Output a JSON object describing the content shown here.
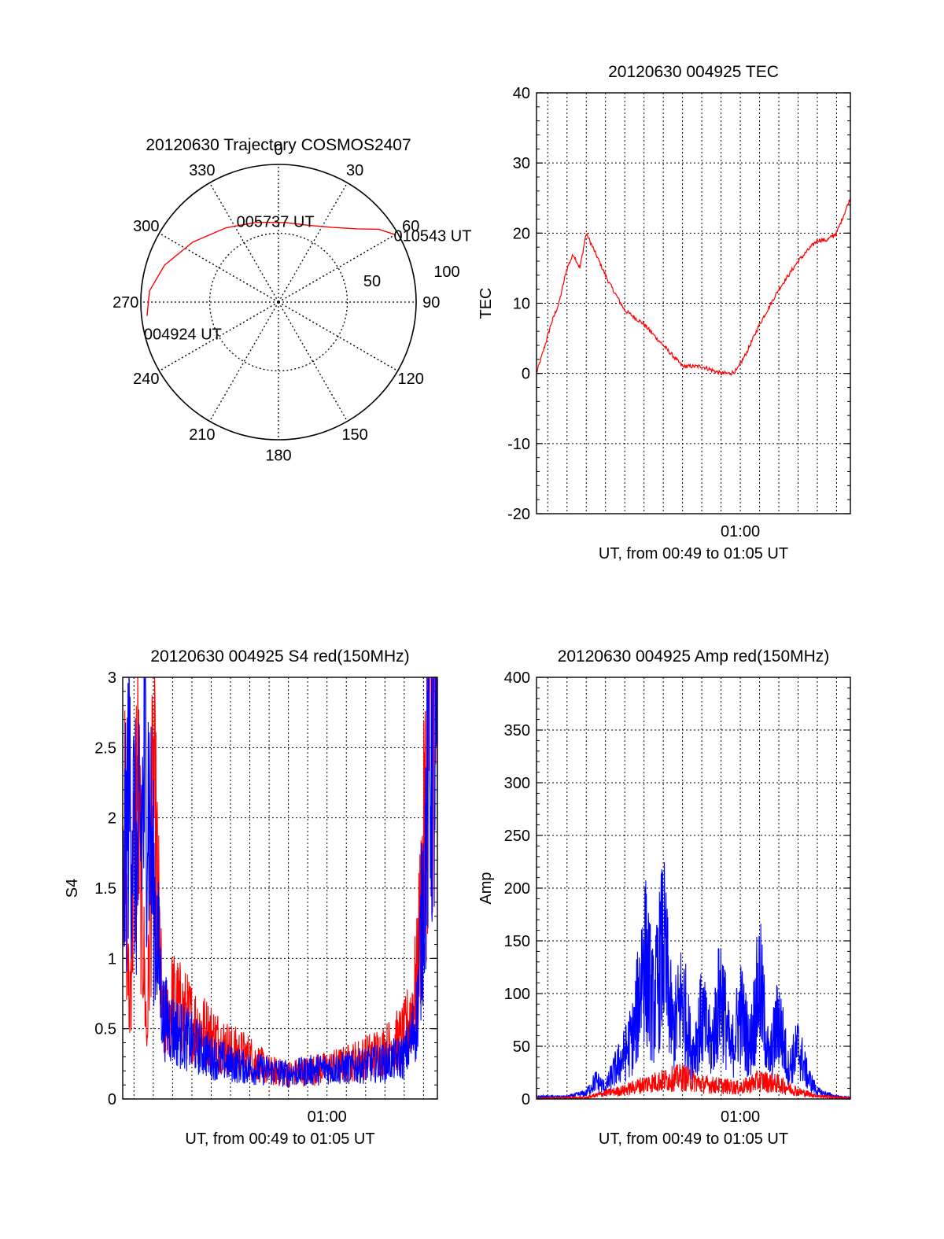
{
  "figure": {
    "background": "#ffffff"
  },
  "chart_data": [
    {
      "type": "polar",
      "title": "20120630 Trajectory COSMOS2407",
      "azimuth_labels": [
        "0",
        "30",
        "60",
        "90",
        "120",
        "150",
        "180",
        "210",
        "240",
        "270",
        "300",
        "330"
      ],
      "ring_labels": [
        "50",
        "100"
      ],
      "grid": true,
      "track": {
        "color": "#ff0000",
        "azimuth_deg": [
          264,
          275,
          288,
          305,
          325,
          345,
          5,
          22,
          36,
          47,
          54,
          60
        ],
        "zenith_deg": [
          96,
          94,
          87,
          76,
          66,
          60,
          58,
          60,
          67,
          78,
          90,
          98
        ]
      },
      "annotations": [
        {
          "text": "010543 UT",
          "azimuth_deg": 60,
          "zenith_deg": 98
        },
        {
          "text": "005737 UT",
          "azimuth_deg": 350,
          "zenith_deg": 59
        },
        {
          "text": "004924 UT",
          "azimuth_deg": 264,
          "zenith_deg": 96
        }
      ]
    },
    {
      "type": "line",
      "title": "20120630 004925 TEC",
      "xlabel": "UT, from 00:49 to 01:05 UT",
      "ylabel": "TEC",
      "xlim": [
        "00:49:25",
        "01:05:43"
      ],
      "ylim": [
        -20,
        40
      ],
      "yticks": [
        "-20",
        "-10",
        "0",
        "10",
        "20",
        "30",
        "40"
      ],
      "xticks": [
        {
          "label": "01:00",
          "time": "01:00:00"
        }
      ],
      "grid": true,
      "series": [
        {
          "color": "#ff0000",
          "x": [
            "00:49:25",
            "00:49:45",
            "00:50:10",
            "00:50:35",
            "00:51:00",
            "00:51:20",
            "00:51:40",
            "00:52:00",
            "00:52:10",
            "00:52:30",
            "00:53:10",
            "00:54:00",
            "00:55:00",
            "00:56:00",
            "00:57:00",
            "00:58:00",
            "00:58:30",
            "00:59:00",
            "00:59:30",
            "00:59:50",
            "01:00:20",
            "01:01:00",
            "01:02:00",
            "01:03:00",
            "01:04:00",
            "01:04:30",
            "01:05:00",
            "01:05:43"
          ],
          "y": [
            0,
            3,
            7,
            10,
            15,
            17,
            15,
            20,
            19,
            17,
            13,
            9,
            7,
            4,
            1,
            1,
            0.5,
            0,
            0,
            0.5,
            3,
            7,
            12,
            16,
            19,
            19,
            20,
            25
          ]
        }
      ]
    },
    {
      "type": "line",
      "title": "20120630 004925 S4 red(150MHz)",
      "xlabel": "UT, from 00:49 to 01:05 UT",
      "ylabel": "S4",
      "xlim": [
        "00:49:25",
        "01:05:43"
      ],
      "ylim": [
        0,
        3
      ],
      "yticks": [
        "0",
        "0.5",
        "1",
        "1.5",
        "2",
        "2.5",
        "3"
      ],
      "xticks": [
        {
          "label": "01:00",
          "time": "01:00:00"
        }
      ],
      "grid": true,
      "series": [
        {
          "color": "#ff0000",
          "x": [
            "00:49:25",
            "00:49:45",
            "00:50:10",
            "00:50:40",
            "00:51:00",
            "00:51:30",
            "00:52:00",
            "00:53:00",
            "00:54:00",
            "00:55:00",
            "00:56:00",
            "00:57:00",
            "00:58:00",
            "00:59:00",
            "01:00:00",
            "01:01:00",
            "01:02:00",
            "01:03:00",
            "01:04:00",
            "01:04:20",
            "01:04:40",
            "01:05:00",
            "01:05:20",
            "01:05:43"
          ],
          "y": [
            2.4,
            0.6,
            2.3,
            0.4,
            2.2,
            0.5,
            0.7,
            0.55,
            0.45,
            0.35,
            0.3,
            0.2,
            0.18,
            0.2,
            0.22,
            0.25,
            0.3,
            0.35,
            0.45,
            0.6,
            0.85,
            1.7,
            2.8,
            2.9
          ]
        },
        {
          "color": "#0000ff",
          "x": [
            "00:49:25",
            "00:49:45",
            "00:50:10",
            "00:50:40",
            "00:51:00",
            "00:51:30",
            "00:52:00",
            "00:53:00",
            "00:54:00",
            "00:55:00",
            "00:56:00",
            "00:57:00",
            "00:58:00",
            "00:59:00",
            "01:00:00",
            "01:01:00",
            "01:02:00",
            "01:03:00",
            "01:04:00",
            "01:04:20",
            "01:04:40",
            "01:05:00",
            "01:05:20",
            "01:05:43"
          ],
          "y": [
            1.3,
            2.3,
            1.6,
            2.4,
            1.5,
            0.6,
            0.5,
            0.4,
            0.3,
            0.25,
            0.22,
            0.2,
            0.18,
            0.2,
            0.22,
            0.22,
            0.24,
            0.26,
            0.3,
            0.4,
            0.6,
            1.5,
            2.5,
            2.2
          ]
        }
      ]
    },
    {
      "type": "line",
      "title": "20120630 004925 Amp red(150MHz)",
      "xlabel": "UT, from 00:49 to 01:05 UT",
      "ylabel": "Amp",
      "xlim": [
        "00:49:25",
        "01:05:43"
      ],
      "ylim": [
        0,
        400
      ],
      "yticks": [
        "0",
        "50",
        "100",
        "150",
        "200",
        "250",
        "300",
        "350",
        "400"
      ],
      "xticks": [
        {
          "label": "01:00",
          "time": "01:00:00"
        }
      ],
      "grid": true,
      "series": [
        {
          "color": "#0000ff",
          "x": [
            "00:49:25",
            "00:51:00",
            "00:52:00",
            "00:52:30",
            "00:53:00",
            "00:53:30",
            "00:54:00",
            "00:54:30",
            "00:55:00",
            "00:55:30",
            "00:56:00",
            "00:56:30",
            "00:57:00",
            "00:57:30",
            "00:58:00",
            "00:58:30",
            "00:59:00",
            "00:59:30",
            "01:00:00",
            "01:00:30",
            "01:01:00",
            "01:01:30",
            "01:02:00",
            "01:02:30",
            "01:03:00",
            "01:03:30",
            "01:04:00",
            "01:05:00",
            "01:05:43"
          ],
          "y": [
            3,
            3,
            8,
            25,
            15,
            40,
            60,
            90,
            200,
            120,
            210,
            90,
            140,
            60,
            110,
            70,
            150,
            60,
            120,
            70,
            160,
            50,
            110,
            40,
            70,
            30,
            10,
            3,
            2
          ]
        },
        {
          "color": "#ff0000",
          "x": [
            "00:49:25",
            "00:52:00",
            "00:53:00",
            "00:54:00",
            "00:55:00",
            "00:56:00",
            "00:57:00",
            "00:58:00",
            "00:59:00",
            "01:00:00",
            "01:01:00",
            "01:02:00",
            "01:03:00",
            "01:04:00",
            "01:05:43"
          ],
          "y": [
            1,
            2,
            8,
            12,
            20,
            25,
            30,
            20,
            18,
            15,
            25,
            20,
            10,
            4,
            1
          ]
        }
      ]
    }
  ]
}
